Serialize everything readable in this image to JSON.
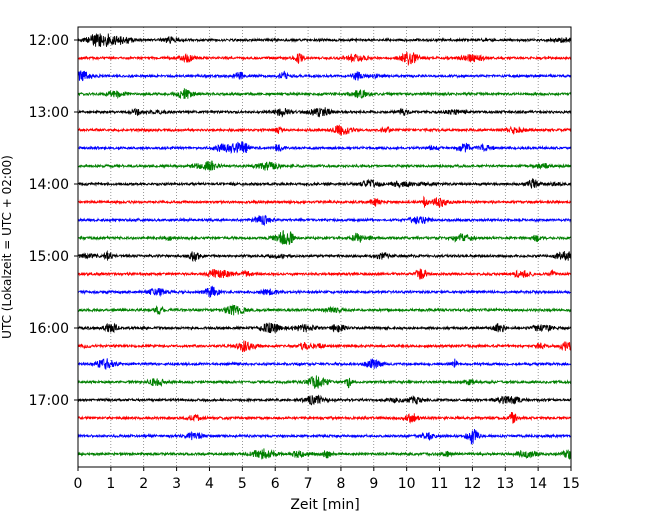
{
  "chart_data": {
    "type": "line",
    "title": "",
    "xlabel": "Zeit  [min]",
    "ylabel": "UTC (Lokalzeit = UTC + 02:00)",
    "xlim": [
      0,
      15
    ],
    "x_ticks": [
      "0",
      "1",
      "2",
      "3",
      "4",
      "5",
      "6",
      "7",
      "8",
      "9",
      "10",
      "11",
      "12",
      "13",
      "14",
      "15"
    ],
    "y_ticks": [
      "12:00",
      "13:00",
      "14:00",
      "15:00",
      "16:00",
      "17:00"
    ],
    "grid": "vertical dotted at each minute",
    "trace_interval_minutes": 15,
    "trace_colors": [
      "#000000",
      "#ff0000",
      "#0000ff",
      "#008000"
    ],
    "traces": [
      {
        "start": "12:00",
        "color": "#000000"
      },
      {
        "start": "12:15",
        "color": "#ff0000"
      },
      {
        "start": "12:30",
        "color": "#0000ff"
      },
      {
        "start": "12:45",
        "color": "#008000"
      },
      {
        "start": "13:00",
        "color": "#000000"
      },
      {
        "start": "13:15",
        "color": "#ff0000"
      },
      {
        "start": "13:30",
        "color": "#0000ff"
      },
      {
        "start": "13:45",
        "color": "#008000"
      },
      {
        "start": "14:00",
        "color": "#000000"
      },
      {
        "start": "14:15",
        "color": "#ff0000"
      },
      {
        "start": "14:30",
        "color": "#0000ff"
      },
      {
        "start": "14:45",
        "color": "#008000"
      },
      {
        "start": "15:00",
        "color": "#000000"
      },
      {
        "start": "15:15",
        "color": "#ff0000"
      },
      {
        "start": "15:30",
        "color": "#0000ff"
      },
      {
        "start": "15:45",
        "color": "#008000"
      },
      {
        "start": "16:00",
        "color": "#000000"
      },
      {
        "start": "16:15",
        "color": "#ff0000"
      },
      {
        "start": "16:30",
        "color": "#0000ff"
      },
      {
        "start": "16:45",
        "color": "#008000"
      },
      {
        "start": "17:00",
        "color": "#000000"
      },
      {
        "start": "17:15",
        "color": "#ff0000"
      },
      {
        "start": "17:30",
        "color": "#0000ff"
      },
      {
        "start": "17:45",
        "color": "#008000"
      }
    ]
  }
}
